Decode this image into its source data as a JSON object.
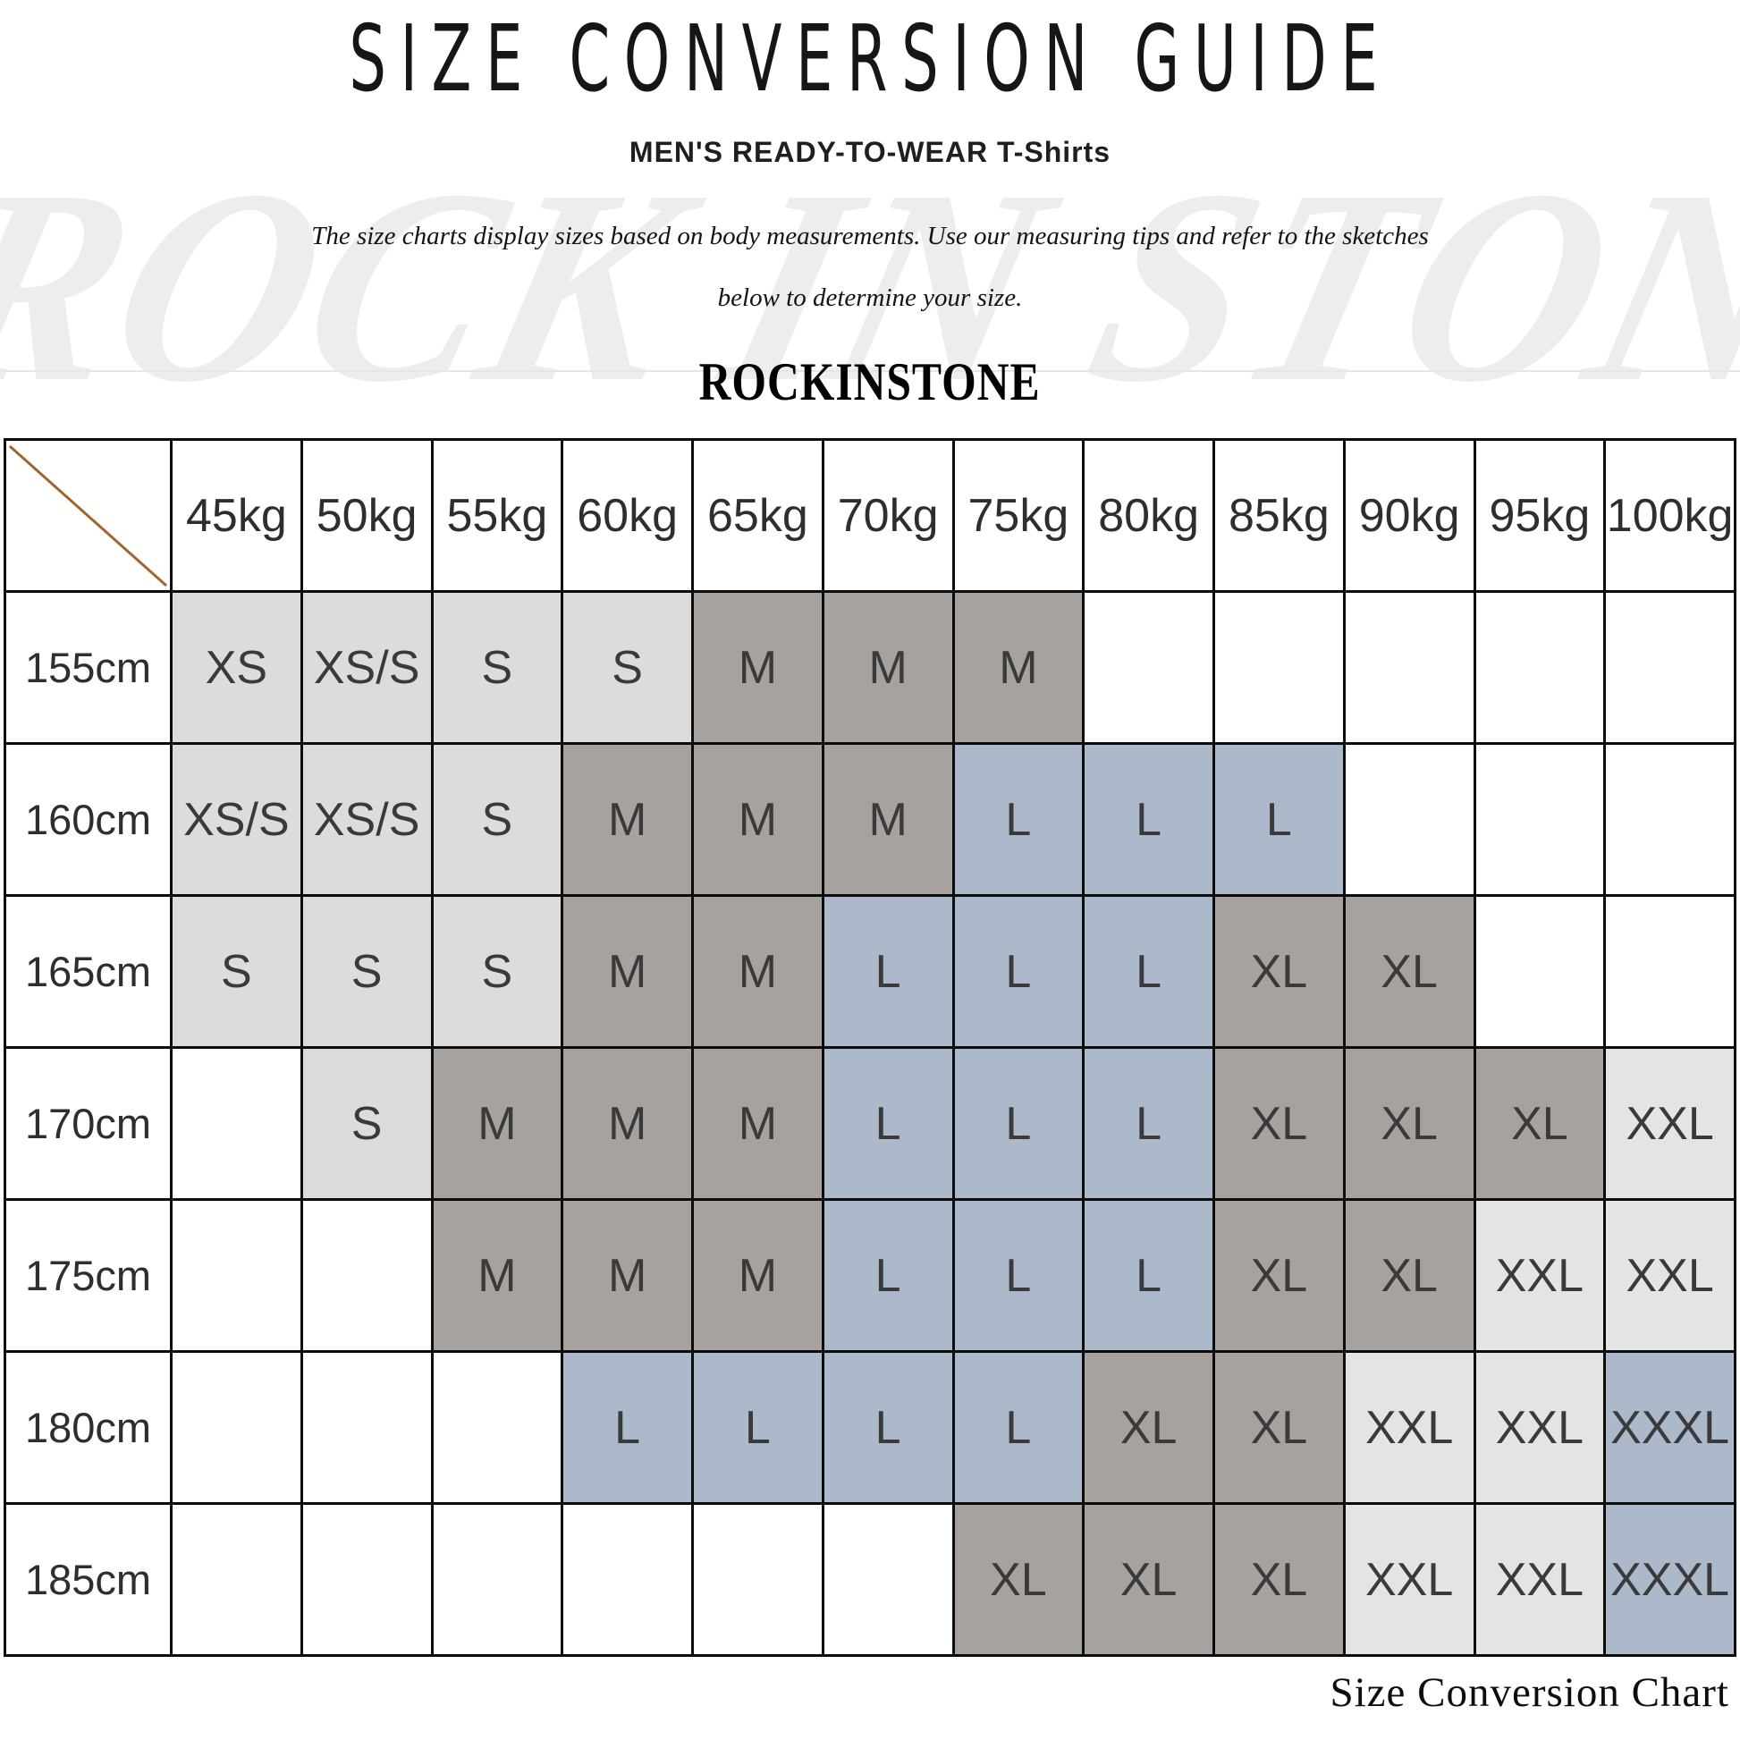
{
  "header": {
    "title": "SIZE CONVERSION GUIDE",
    "subtitle": "MEN'S READY-TO-WEAR T-Shirts",
    "description_line1": "The size charts display sizes based on body measurements. Use our measuring tips and refer to the sketches",
    "description_line2": "below to determine your size.",
    "brand": "ROCKINSTONE",
    "watermark": "ROCK IN STONE"
  },
  "caption": "Size Conversion Chart",
  "chart_data": {
    "type": "table",
    "title": "Size Conversion Chart",
    "column_headers": [
      "45kg",
      "50kg",
      "55kg",
      "60kg",
      "65kg",
      "70kg",
      "75kg",
      "80kg",
      "85kg",
      "90kg",
      "95kg",
      "100kg"
    ],
    "row_headers": [
      "155cm",
      "160cm",
      "165cm",
      "170cm",
      "175cm",
      "180cm",
      "185cm"
    ],
    "cells": [
      [
        "XS",
        "XS/S",
        "S",
        "S",
        "M",
        "M",
        "M",
        "",
        "",
        "",
        "",
        ""
      ],
      [
        "XS/S",
        "XS/S",
        "S",
        "M",
        "M",
        "M",
        "L",
        "L",
        "L",
        "",
        "",
        ""
      ],
      [
        "S",
        "S",
        "S",
        "M",
        "M",
        "L",
        "L",
        "L",
        "XL",
        "XL",
        "",
        ""
      ],
      [
        "",
        "S",
        "M",
        "M",
        "M",
        "L",
        "L",
        "L",
        "XL",
        "XL",
        "XL",
        "XXL"
      ],
      [
        "",
        "",
        "M",
        "M",
        "M",
        "L",
        "L",
        "L",
        "XL",
        "XL",
        "XXL",
        "XXL"
      ],
      [
        "",
        "",
        "",
        "L",
        "L",
        "L",
        "L",
        "XL",
        "XL",
        "XXL",
        "XXL",
        "XXXL"
      ],
      [
        "",
        "",
        "",
        "",
        "",
        "",
        "XL",
        "XL",
        "XL",
        "XXL",
        "XXL",
        "XXXL"
      ]
    ],
    "cell_colors": {
      "XS": "#dcdcdc",
      "XS/S": "#dcdcdc",
      "S": "#dcdcdc",
      "M": "#a8a29e",
      "L": "#abb9cb",
      "XL": "#a8a29e",
      "XXL": "#e4e4e4",
      "XXXL": "#abb9cb",
      "": "#ffffff"
    },
    "diagonal_line_color": "#a4632c",
    "grid_border_color": "#0c0c0c"
  }
}
